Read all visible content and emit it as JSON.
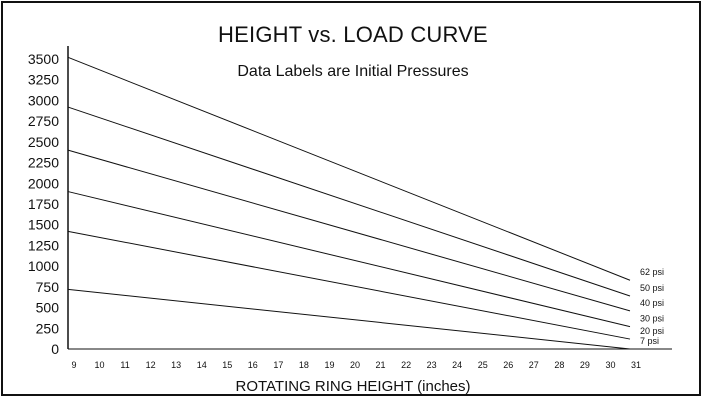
{
  "chart_data": {
    "type": "line",
    "title": "HEIGHT vs. LOAD CURVE",
    "subtitle": "Data Labels are Initial Pressures",
    "xlabel": "ROTATING RING HEIGHT (inches)",
    "ylabel": "",
    "x_ticks": [
      9,
      10,
      11,
      12,
      13,
      14,
      15,
      16,
      17,
      18,
      19,
      20,
      21,
      22,
      23,
      24,
      25,
      26,
      27,
      28,
      29,
      30,
      31
    ],
    "y_ticks": [
      0,
      250,
      500,
      750,
      1000,
      1250,
      1500,
      1750,
      2000,
      2250,
      2500,
      2750,
      3000,
      3250,
      3500
    ],
    "xlim": [
      9,
      31
    ],
    "ylim": [
      0,
      3500
    ],
    "series": [
      {
        "name": "7 psi",
        "x": [
          9,
          31
        ],
        "values": [
          720,
          0
        ]
      },
      {
        "name": "20 psi",
        "x": [
          9,
          31
        ],
        "values": [
          1420,
          120
        ]
      },
      {
        "name": "30 psi",
        "x": [
          9,
          31
        ],
        "values": [
          1900,
          270
        ]
      },
      {
        "name": "40 psi",
        "x": [
          9,
          31
        ],
        "values": [
          2400,
          460
        ]
      },
      {
        "name": "50 psi",
        "x": [
          9,
          31
        ],
        "values": [
          2920,
          640
        ]
      },
      {
        "name": "62 psi",
        "x": [
          9,
          31
        ],
        "values": [
          3520,
          830
        ]
      }
    ],
    "legend": "data-labels-at-line-ends",
    "grid": false,
    "colors": {
      "line": "#111111",
      "text": "#111111"
    }
  }
}
